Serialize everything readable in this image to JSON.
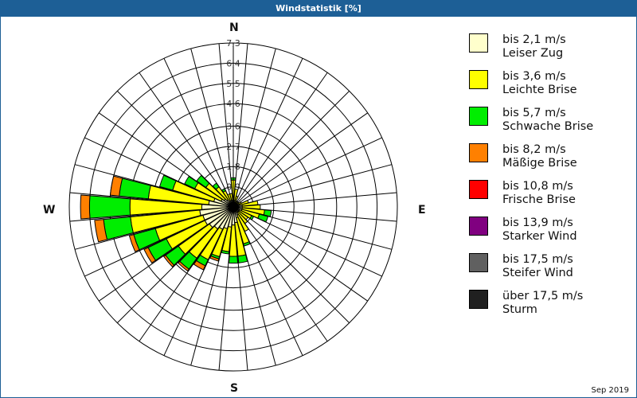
{
  "window": {
    "title": "Windstatistik [%]"
  },
  "caption": "Sep 2019",
  "compass": {
    "N": "N",
    "E": "E",
    "S": "S",
    "W": "W"
  },
  "legend": [
    {
      "speed": "bis 2,1 m/s",
      "name": "Leiser Zug",
      "color": "#ffffcc"
    },
    {
      "speed": "bis 3,6 m/s",
      "name": "Leichte Brise",
      "color": "#ffff00"
    },
    {
      "speed": "bis 5,7 m/s",
      "name": "Schwache Brise",
      "color": "#00ee00"
    },
    {
      "speed": "bis 8,2 m/s",
      "name": "Mäßige Brise",
      "color": "#ff8000"
    },
    {
      "speed": "bis 10,8 m/s",
      "name": "Frische Brise",
      "color": "#ff0000"
    },
    {
      "speed": "bis 13,9 m/s",
      "name": "Starker Wind",
      "color": "#800080"
    },
    {
      "speed": "bis 17,5 m/s",
      "name": "Steifer Wind",
      "color": "#606060"
    },
    {
      "speed": "über 17,5 m/s",
      "name": "Sturm",
      "color": "#202020"
    }
  ],
  "chart_data": {
    "type": "wind-rose",
    "title": "Windstatistik [%]",
    "ring_labels": [
      "0,9",
      "1,8",
      "2,7",
      "3,6",
      "4,6",
      "5,5",
      "6,4",
      "7,3"
    ],
    "ring_values": [
      0.9,
      1.8,
      2.7,
      3.6,
      4.6,
      5.5,
      6.4,
      7.3
    ],
    "rmax": 7.3,
    "sector_width_deg": 10,
    "directions_deg": [
      0,
      10,
      20,
      30,
      40,
      50,
      60,
      70,
      80,
      90,
      100,
      110,
      120,
      130,
      140,
      150,
      160,
      170,
      180,
      190,
      200,
      210,
      220,
      230,
      240,
      250,
      260,
      270,
      280,
      290,
      300,
      310,
      320,
      330,
      340,
      350
    ],
    "series": [
      {
        "name": "bis 2,1 m/s",
        "values": [
          0.3,
          0.3,
          0.2,
          0.2,
          0.2,
          0.2,
          0.2,
          0.3,
          0.4,
          0.4,
          0.4,
          0.4,
          0.3,
          0.3,
          0.3,
          0.4,
          0.5,
          0.7,
          0.8,
          0.9,
          1.0,
          1.1,
          1.2,
          1.3,
          1.4,
          1.4,
          1.5,
          1.4,
          1.1,
          0.9,
          0.6,
          0.5,
          0.4,
          0.3,
          0.3,
          0.3
        ]
      },
      {
        "name": "bis 3,6 m/s",
        "values": [
          0.9,
          0.5,
          0.3,
          0.1,
          0.1,
          0.1,
          0.2,
          0.4,
          0.7,
          0.8,
          1.0,
          0.8,
          0.6,
          0.5,
          0.6,
          0.8,
          1.2,
          1.5,
          1.4,
          1.1,
          1.3,
          1.5,
          1.6,
          1.7,
          1.9,
          2.2,
          3.1,
          3.2,
          2.7,
          1.9,
          1.3,
          1.0,
          0.7,
          0.5,
          0.3,
          0.3
        ]
      },
      {
        "name": "bis 5,7 m/s",
        "values": [
          0.1,
          0.0,
          0.0,
          0.0,
          0.0,
          0.0,
          0.0,
          0.0,
          0.0,
          0.0,
          0.3,
          0.4,
          0.1,
          0.0,
          0.0,
          0.0,
          0.1,
          0.3,
          0.3,
          0.1,
          0.1,
          0.3,
          0.6,
          0.7,
          0.9,
          1.0,
          1.2,
          1.8,
          1.3,
          0.6,
          0.5,
          0.5,
          0.2,
          0.1,
          0.0,
          0.0
        ]
      },
      {
        "name": "bis 8,2 m/s",
        "values": [
          0,
          0,
          0,
          0,
          0,
          0,
          0,
          0,
          0,
          0,
          0,
          0,
          0,
          0,
          0,
          0,
          0,
          0,
          0,
          0,
          0.1,
          0.2,
          0.1,
          0.1,
          0.2,
          0.2,
          0.4,
          0.4,
          0.4,
          0,
          0,
          0,
          0,
          0,
          0,
          0
        ]
      },
      {
        "name": "bis 10,8 m/s",
        "values": [
          0,
          0,
          0,
          0,
          0,
          0,
          0,
          0,
          0,
          0,
          0,
          0,
          0,
          0,
          0,
          0,
          0,
          0,
          0,
          0,
          0,
          0,
          0,
          0,
          0,
          0,
          0,
          0,
          0,
          0,
          0,
          0,
          0,
          0,
          0,
          0
        ]
      },
      {
        "name": "bis 13,9 m/s",
        "values": [
          0,
          0,
          0,
          0,
          0,
          0,
          0,
          0,
          0,
          0,
          0,
          0,
          0,
          0,
          0,
          0,
          0,
          0,
          0,
          0,
          0,
          0,
          0,
          0,
          0,
          0,
          0,
          0,
          0,
          0,
          0,
          0,
          0,
          0,
          0,
          0
        ]
      },
      {
        "name": "bis 17,5 m/s",
        "values": [
          0,
          0,
          0,
          0,
          0,
          0,
          0,
          0,
          0,
          0,
          0,
          0,
          0,
          0,
          0,
          0,
          0,
          0,
          0,
          0,
          0,
          0,
          0,
          0,
          0,
          0,
          0,
          0,
          0,
          0,
          0,
          0,
          0,
          0,
          0,
          0
        ]
      },
      {
        "name": "über 17,5 m/s",
        "values": [
          0,
          0,
          0,
          0,
          0,
          0,
          0,
          0,
          0,
          0,
          0,
          0,
          0,
          0,
          0,
          0,
          0,
          0,
          0,
          0,
          0,
          0,
          0,
          0,
          0,
          0,
          0,
          0,
          0,
          0,
          0,
          0,
          0,
          0,
          0,
          0
        ]
      }
    ],
    "legend_position": "right",
    "grid": true
  }
}
